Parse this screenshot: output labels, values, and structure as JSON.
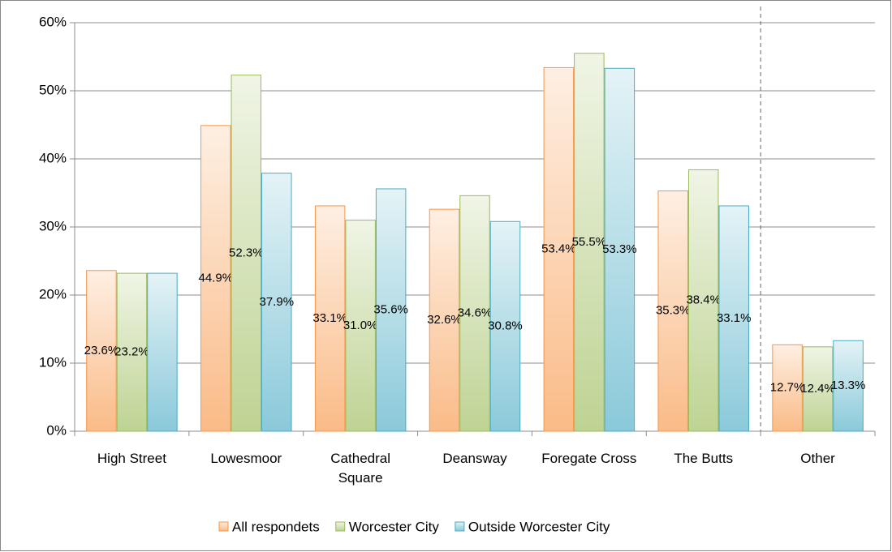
{
  "chart_data": {
    "type": "bar",
    "categories": [
      "High Street",
      "Lowesmoor",
      "Cathedral Square",
      "Deansway",
      "Foregate Cross",
      "The Butts",
      "Other"
    ],
    "series": [
      {
        "name": "All respondets",
        "color": "#f79646",
        "values": [
          23.6,
          44.9,
          33.1,
          32.6,
          53.4,
          35.3,
          12.7
        ],
        "value_labels": [
          "23.6%",
          "44.9%",
          "33.1%",
          "32.6%",
          "53.4%",
          "35.3%",
          "12.7%"
        ]
      },
      {
        "name": "Worcester City",
        "color": "#9bbb59",
        "values": [
          23.2,
          52.3,
          31.0,
          34.6,
          55.5,
          38.4,
          12.4
        ],
        "value_labels": [
          "23.2%",
          "52.3%",
          "31.0%",
          "34.6%",
          "55.5%",
          "38.4%",
          "12.4%"
        ]
      },
      {
        "name": "Outside Worcester City",
        "color": "#4bacc6",
        "values": [
          23.2,
          37.9,
          35.6,
          30.8,
          53.3,
          33.1,
          13.3
        ],
        "value_labels": [
          null,
          "37.9%",
          "35.6%",
          "30.8%",
          "53.3%",
          "33.1%",
          "13.3%"
        ]
      }
    ],
    "ylim": [
      0,
      60
    ],
    "yticks": [
      {
        "value": 0,
        "label": "0%"
      },
      {
        "value": 10,
        "label": "10%"
      },
      {
        "value": 20,
        "label": "20%"
      },
      {
        "value": 30,
        "label": "30%"
      },
      {
        "value": 40,
        "label": "40%"
      },
      {
        "value": 50,
        "label": "50%"
      },
      {
        "value": 60,
        "label": "60%"
      }
    ],
    "grid": true,
    "legend": "bottom"
  }
}
